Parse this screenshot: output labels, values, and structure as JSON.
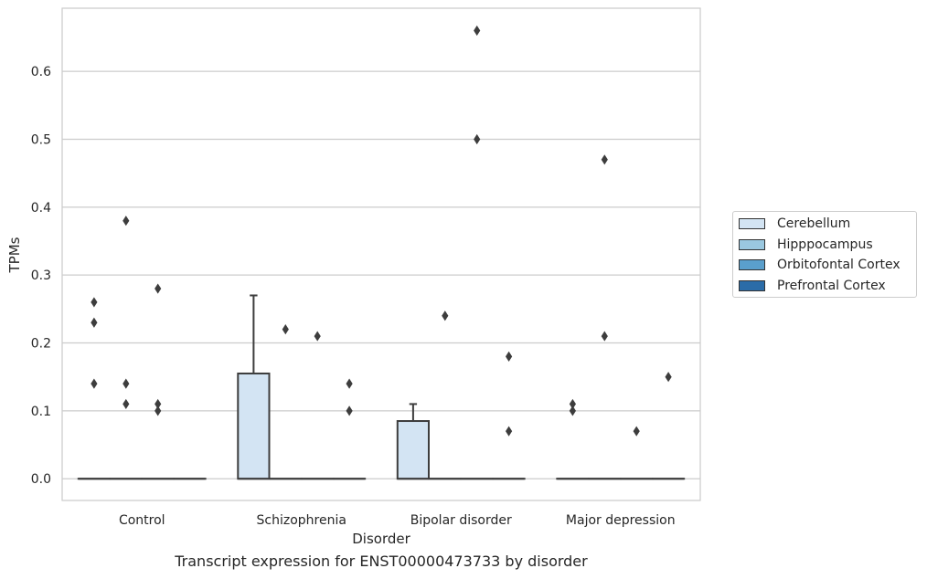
{
  "chart_data": {
    "type": "box",
    "title": "",
    "caption": "Transcript expression for ENST00000473733 by disorder",
    "xlabel": "Disorder",
    "ylabel": "TPMs",
    "ylim": [
      -0.032,
      0.693
    ],
    "yticks": [
      "0.0",
      "0.1",
      "0.2",
      "0.3",
      "0.4",
      "0.5",
      "0.6"
    ],
    "grid": true,
    "legend_position": "right",
    "categories": [
      "Control",
      "Schizophrenia",
      "Bipolar disorder",
      "Major depression"
    ],
    "series": [
      {
        "name": "Cerebellum",
        "color": "#d3e4f3",
        "boxes": [
          {
            "q1": 0,
            "median": 0,
            "q3": 0,
            "whisker_low": 0,
            "whisker_high": 0,
            "outliers": [
              0.14,
              0.23,
              0.26
            ]
          },
          {
            "q1": 0,
            "median": 0,
            "q3": 0.155,
            "whisker_low": 0,
            "whisker_high": 0.27,
            "outliers": []
          },
          {
            "q1": 0,
            "median": 0,
            "q3": 0.085,
            "whisker_low": 0,
            "whisker_high": 0.11,
            "outliers": []
          },
          {
            "q1": 0,
            "median": 0,
            "q3": 0,
            "whisker_low": 0,
            "whisker_high": 0,
            "outliers": [
              0.1,
              0.11
            ]
          }
        ]
      },
      {
        "name": "Hipppocampus",
        "color": "#9ac8e0",
        "boxes": [
          {
            "q1": 0,
            "median": 0,
            "q3": 0,
            "whisker_low": 0,
            "whisker_high": 0,
            "outliers": [
              0.11,
              0.14,
              0.38
            ]
          },
          {
            "q1": 0,
            "median": 0,
            "q3": 0,
            "whisker_low": 0,
            "whisker_high": 0,
            "outliers": [
              0.22
            ]
          },
          {
            "q1": 0,
            "median": 0,
            "q3": 0,
            "whisker_low": 0,
            "whisker_high": 0,
            "outliers": [
              0.24
            ]
          },
          {
            "q1": 0,
            "median": 0,
            "q3": 0,
            "whisker_low": 0,
            "whisker_high": 0,
            "outliers": [
              0.47,
              0.21
            ]
          }
        ]
      },
      {
        "name": "Orbitofontal Cortex",
        "color": "#5a9fcc",
        "boxes": [
          {
            "q1": 0,
            "median": 0,
            "q3": 0,
            "whisker_low": 0,
            "whisker_high": 0,
            "outliers": [
              0.1,
              0.11,
              0.28
            ]
          },
          {
            "q1": 0,
            "median": 0,
            "q3": 0,
            "whisker_low": 0,
            "whisker_high": 0,
            "outliers": [
              0.21
            ]
          },
          {
            "q1": 0,
            "median": 0,
            "q3": 0,
            "whisker_low": 0,
            "whisker_high": 0,
            "outliers": [
              0.5,
              0.66
            ]
          },
          {
            "q1": 0,
            "median": 0,
            "q3": 0,
            "whisker_low": 0,
            "whisker_high": 0,
            "outliers": [
              0.07
            ]
          }
        ]
      },
      {
        "name": "Prefrontal Cortex",
        "color": "#2b6ca8",
        "boxes": [
          {
            "q1": 0,
            "median": 0,
            "q3": 0,
            "whisker_low": 0,
            "whisker_high": 0,
            "outliers": []
          },
          {
            "q1": 0,
            "median": 0,
            "q3": 0,
            "whisker_low": 0,
            "whisker_high": 0,
            "outliers": [
              0.1,
              0.14
            ]
          },
          {
            "q1": 0,
            "median": 0,
            "q3": 0,
            "whisker_low": 0,
            "whisker_high": 0,
            "outliers": [
              0.07,
              0.18
            ]
          },
          {
            "q1": 0,
            "median": 0,
            "q3": 0,
            "whisker_low": 0,
            "whisker_high": 0,
            "outliers": [
              0.15
            ]
          }
        ]
      }
    ]
  }
}
